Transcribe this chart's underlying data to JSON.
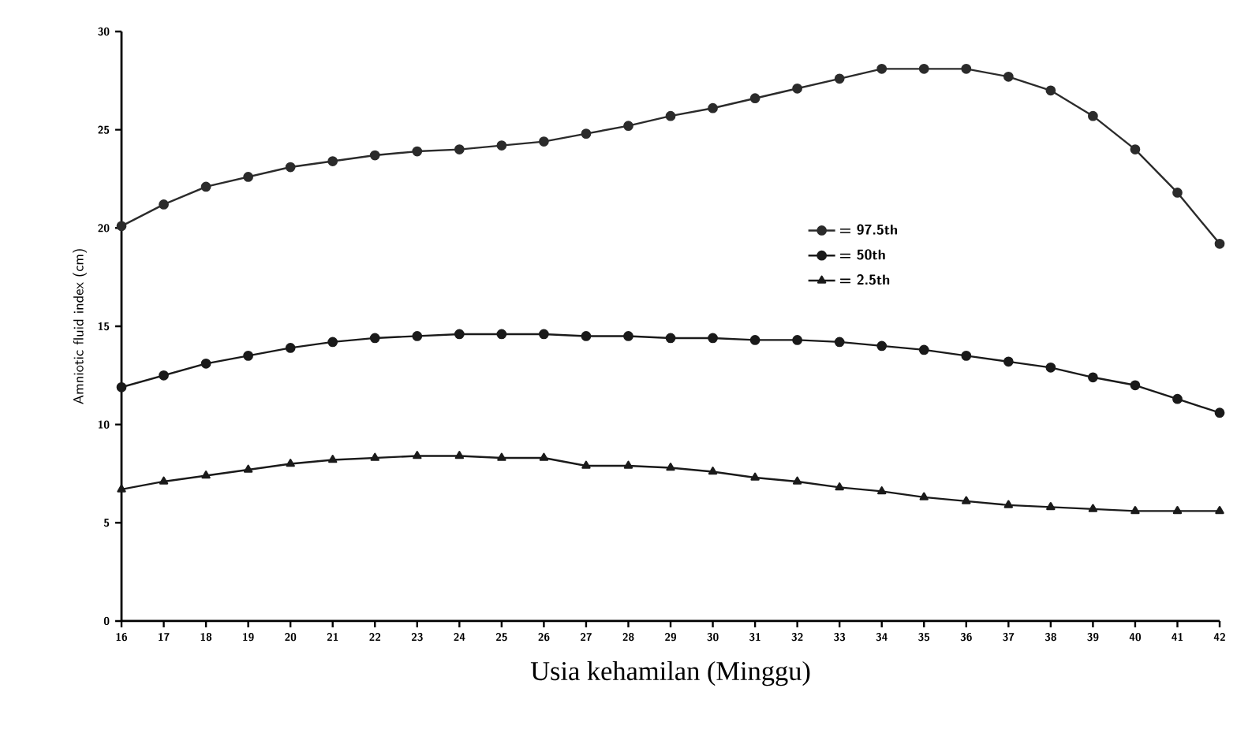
{
  "chart_data": {
    "type": "line",
    "xlabel": "Usia kehamilan (Minggu)",
    "ylabel": "Amniotic fluid index (cm)",
    "x": [
      16,
      17,
      18,
      19,
      20,
      21,
      22,
      23,
      24,
      25,
      26,
      27,
      28,
      29,
      30,
      31,
      32,
      33,
      34,
      35,
      36,
      37,
      38,
      39,
      40,
      41,
      42
    ],
    "xlim": [
      16,
      42
    ],
    "xticks": [
      16,
      17,
      18,
      19,
      20,
      21,
      22,
      23,
      24,
      25,
      26,
      27,
      28,
      29,
      30,
      31,
      32,
      33,
      34,
      35,
      36,
      37,
      38,
      39,
      40,
      41,
      42
    ],
    "ylim": [
      0,
      30
    ],
    "yticks": [
      0,
      5,
      10,
      15,
      20,
      25,
      30
    ],
    "grid": false,
    "legend": "right",
    "line_style": "solid",
    "series": [
      {
        "name": "= 97.5th",
        "color": "#2b2b2b",
        "marker": "circle",
        "values": [
          20.1,
          21.2,
          22.1,
          22.6,
          23.1,
          23.4,
          23.7,
          23.9,
          24.0,
          24.2,
          24.4,
          24.8,
          25.2,
          25.7,
          26.1,
          26.6,
          27.1,
          27.6,
          28.1,
          28.1,
          28.1,
          27.7,
          27.0,
          25.7,
          24.0,
          21.8,
          19.2
        ]
      },
      {
        "name": "= 50th",
        "color": "#1a1a1a",
        "marker": "circle",
        "values": [
          11.9,
          12.5,
          13.1,
          13.5,
          13.9,
          14.2,
          14.4,
          14.5,
          14.6,
          14.6,
          14.6,
          14.5,
          14.5,
          14.4,
          14.4,
          14.3,
          14.3,
          14.2,
          14.0,
          13.8,
          13.5,
          13.2,
          12.9,
          12.4,
          12.0,
          11.3,
          10.6
        ]
      },
      {
        "name": "= 2.5th",
        "color": "#1a1a1a",
        "marker": "triangle",
        "values": [
          6.7,
          7.1,
          7.4,
          7.7,
          8.0,
          8.2,
          8.3,
          8.4,
          8.4,
          8.3,
          8.3,
          7.9,
          7.9,
          7.8,
          7.6,
          7.3,
          7.1,
          6.8,
          6.6,
          6.3,
          6.1,
          5.9,
          5.8,
          5.7,
          5.6,
          5.6,
          5.6
        ]
      }
    ]
  }
}
